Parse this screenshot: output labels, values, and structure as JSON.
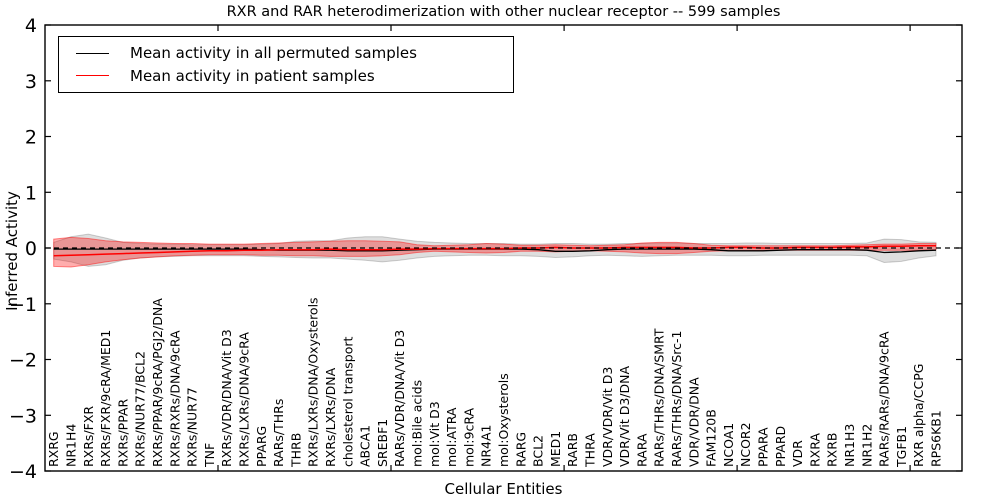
{
  "chart_data": {
    "type": "line",
    "title": "RXR and RAR heterodimerization with other nuclear receptor -- 599 samples",
    "xlabel": "Cellular Entities",
    "ylabel": "Inferred Activity",
    "ylim": [
      -4,
      4
    ],
    "ytick_labels": [
      "4",
      "3",
      "2",
      "1",
      "0",
      "−1",
      "−2",
      "−3",
      "−4"
    ],
    "ytick_values": [
      4,
      3,
      2,
      1,
      0,
      -1,
      -2,
      -3,
      -4
    ],
    "x_axis_unit_range": 53,
    "xtick_unit_positions": [
      10,
      20,
      30,
      40,
      50
    ],
    "grid": false,
    "legend_position": "upper left",
    "zero_line": {
      "value": 0,
      "style": "dashed",
      "color": "#000000"
    },
    "categories": [
      "RXRG",
      "NR1H4",
      "RXRs/FXR",
      "RXRs/FXR/9cRA/MED1",
      "RXRs/PPAR",
      "RXRs/NUR77/BCL2",
      "RXRs/PPAR/9cRA/PGJ2/DNA",
      "RXRs/RXRs/DNA/9cRA",
      "RXRs/NUR77",
      "TNF",
      "RXRs/VDR/DNA/Vit D3",
      "RXRs/LXRs/DNA/9cRA",
      "PPARG",
      "RARs/THRs",
      "THRB",
      "RXRs/LXRs/DNA/Oxysterols",
      "RXRs/LXRs/DNA",
      "cholesterol transport",
      "ABCA1",
      "SREBF1",
      "RARs/VDR/DNA/Vit D3",
      "mol:Bile acids",
      "mol:Vit D3",
      "mol:ATRA",
      "mol:9cRA",
      "NR4A1",
      "mol:Oxysterols",
      "RARG",
      "BCL2",
      "MED1",
      "RARB",
      "THRA",
      "VDR/VDR/Vit D3",
      "VDR/Vit D3/DNA",
      "RARA",
      "RARs/THRs/DNA/SMRT",
      "RARs/THRs/DNA/Src-1",
      "VDR/VDR/DNA",
      "FAM120B",
      "NCOA1",
      "NCOR2",
      "PPARA",
      "PPARD",
      "VDR",
      "RXRA",
      "RXRB",
      "NR1H3",
      "NR1H2",
      "RARs/RARs/DNA/9cRA",
      "TGFB1",
      "RXR alpha/CCPG",
      "RPS6KB1"
    ],
    "series": [
      {
        "name": "Mean activity in all permuted samples",
        "color": "#000000",
        "line_style": "solid",
        "band_fill": "rgba(0,0,0,0.13)",
        "band_edge": "rgba(0,0,0,0.18)",
        "values": [
          -0.02,
          -0.02,
          -0.02,
          -0.02,
          -0.02,
          -0.02,
          -0.02,
          -0.02,
          -0.02,
          -0.02,
          -0.02,
          -0.02,
          -0.03,
          -0.04,
          -0.04,
          -0.04,
          -0.04,
          -0.05,
          -0.05,
          -0.05,
          -0.04,
          -0.03,
          -0.02,
          -0.02,
          -0.02,
          -0.02,
          -0.02,
          -0.02,
          -0.03,
          -0.06,
          -0.06,
          -0.05,
          -0.03,
          -0.02,
          -0.02,
          -0.02,
          -0.02,
          -0.02,
          -0.03,
          -0.05,
          -0.05,
          -0.05,
          -0.04,
          -0.03,
          -0.03,
          -0.03,
          -0.03,
          -0.04,
          -0.08,
          -0.07,
          -0.05,
          -0.04
        ],
        "band_upper": [
          0.1,
          0.2,
          0.25,
          0.18,
          0.1,
          0.08,
          0.07,
          0.07,
          0.06,
          0.06,
          0.06,
          0.06,
          0.07,
          0.08,
          0.12,
          0.13,
          0.13,
          0.18,
          0.2,
          0.2,
          0.16,
          0.12,
          0.1,
          0.09,
          0.08,
          0.08,
          0.08,
          0.07,
          0.07,
          0.08,
          0.08,
          0.07,
          0.07,
          0.08,
          0.08,
          0.09,
          0.09,
          0.08,
          0.08,
          0.08,
          0.09,
          0.09,
          0.08,
          0.08,
          0.08,
          0.08,
          0.08,
          0.09,
          0.16,
          0.15,
          0.11,
          0.1
        ],
        "band_lower": [
          -0.2,
          -0.25,
          -0.33,
          -0.3,
          -0.22,
          -0.18,
          -0.16,
          -0.15,
          -0.14,
          -0.14,
          -0.14,
          -0.14,
          -0.15,
          -0.16,
          -0.17,
          -0.18,
          -0.18,
          -0.2,
          -0.22,
          -0.25,
          -0.22,
          -0.18,
          -0.15,
          -0.14,
          -0.13,
          -0.13,
          -0.14,
          -0.14,
          -0.15,
          -0.17,
          -0.16,
          -0.14,
          -0.13,
          -0.14,
          -0.15,
          -0.14,
          -0.13,
          -0.13,
          -0.13,
          -0.14,
          -0.14,
          -0.13,
          -0.13,
          -0.13,
          -0.13,
          -0.13,
          -0.13,
          -0.14,
          -0.26,
          -0.24,
          -0.18,
          -0.14
        ]
      },
      {
        "name": "Mean activity in patient samples",
        "color": "#ff0000",
        "line_style": "solid",
        "band_fill": "rgba(255,0,0,0.32)",
        "band_edge": "rgba(255,0,0,0.45)",
        "values": [
          -0.14,
          -0.13,
          -0.12,
          -0.11,
          -0.1,
          -0.09,
          -0.08,
          -0.07,
          -0.06,
          -0.05,
          -0.05,
          -0.04,
          -0.04,
          -0.03,
          -0.03,
          -0.03,
          -0.02,
          -0.03,
          -0.03,
          -0.03,
          -0.02,
          -0.02,
          -0.01,
          -0.01,
          -0.01,
          -0.01,
          -0.01,
          0.0,
          0.0,
          0.01,
          0.0,
          0.0,
          0.0,
          0.01,
          0.01,
          0.01,
          0.01,
          0.0,
          0.0,
          0.01,
          0.01,
          0.0,
          0.0,
          0.01,
          0.01,
          0.01,
          0.02,
          0.02,
          0.03,
          0.03,
          0.04,
          0.04
        ],
        "band_upper": [
          0.16,
          0.19,
          0.17,
          0.13,
          0.11,
          0.1,
          0.09,
          0.08,
          0.08,
          0.07,
          0.07,
          0.07,
          0.08,
          0.09,
          0.1,
          0.11,
          0.12,
          0.13,
          0.13,
          0.12,
          0.11,
          0.06,
          0.04,
          0.05,
          0.06,
          0.08,
          0.07,
          0.05,
          0.05,
          0.06,
          0.05,
          0.04,
          0.05,
          0.06,
          0.09,
          0.1,
          0.1,
          0.08,
          0.05,
          0.04,
          0.04,
          0.04,
          0.04,
          0.04,
          0.04,
          0.04,
          0.05,
          0.06,
          0.07,
          0.07,
          0.08,
          0.08
        ],
        "band_lower": [
          -0.33,
          -0.34,
          -0.3,
          -0.25,
          -0.21,
          -0.18,
          -0.16,
          -0.14,
          -0.13,
          -0.12,
          -0.12,
          -0.12,
          -0.13,
          -0.13,
          -0.14,
          -0.14,
          -0.15,
          -0.15,
          -0.15,
          -0.14,
          -0.12,
          -0.08,
          -0.06,
          -0.07,
          -0.08,
          -0.09,
          -0.08,
          -0.06,
          -0.06,
          -0.07,
          -0.06,
          -0.05,
          -0.06,
          -0.07,
          -0.09,
          -0.1,
          -0.1,
          -0.08,
          -0.06,
          -0.05,
          -0.05,
          -0.04,
          -0.04,
          -0.04,
          -0.04,
          -0.04,
          -0.04,
          -0.04,
          -0.04,
          -0.04,
          -0.04,
          -0.03
        ]
      }
    ]
  }
}
